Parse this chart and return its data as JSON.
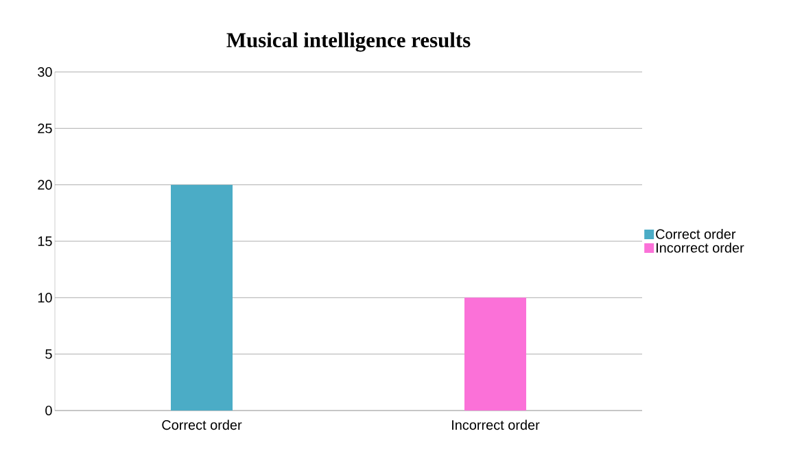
{
  "chart_data": {
    "type": "bar",
    "title": "Musical intelligence results",
    "categories": [
      "Correct order",
      "Incorrect order"
    ],
    "series": [
      {
        "name": "Correct order",
        "color": "#4bacc6",
        "values": [
          20,
          null
        ]
      },
      {
        "name": "Incorrect order",
        "color": "#fb71d8",
        "values": [
          null,
          10
        ]
      }
    ],
    "ylim": [
      0,
      30
    ],
    "yticks": [
      0,
      5,
      10,
      15,
      20,
      25,
      30
    ],
    "grid": "y",
    "legend": "right"
  }
}
